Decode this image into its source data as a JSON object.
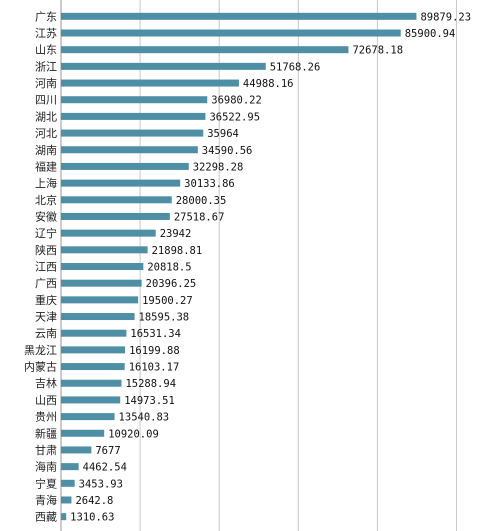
{
  "chart_data": {
    "type": "bar",
    "orientation": "horizontal",
    "categories": [
      "广东",
      "江苏",
      "山东",
      "浙江",
      "河南",
      "四川",
      "湖北",
      "河北",
      "湖南",
      "福建",
      "上海",
      "北京",
      "安徽",
      "辽宁",
      "陕西",
      "江西",
      "广西",
      "重庆",
      "天津",
      "云南",
      "黑龙江",
      "内蒙古",
      "吉林",
      "山西",
      "贵州",
      "新疆",
      "甘肃",
      "海南",
      "宁夏",
      "青海",
      "西藏"
    ],
    "values": [
      89879.23,
      85900.94,
      72678.18,
      51768.26,
      44988.16,
      36980.22,
      36522.95,
      35964,
      34590.56,
      32298.28,
      30133.86,
      28000.35,
      27518.67,
      23942,
      21898.81,
      20818.5,
      20396.25,
      19500.27,
      18595.38,
      16531.34,
      16199.88,
      16103.17,
      15288.94,
      14973.51,
      13540.83,
      10920.09,
      7677,
      4462.54,
      3453.93,
      2642.8,
      1310.63
    ],
    "value_labels": [
      "89879.23",
      "85900.94",
      "72678.18",
      "51768.26",
      "44988.16",
      "36980.22",
      "36522.95",
      "35964",
      "34590.56",
      "32298.28",
      "30133.86",
      "28000.35",
      "27518.67",
      "23942",
      "21898.81",
      "20818.5",
      "20396.25",
      "19500.27",
      "18595.38",
      "16531.34",
      "16199.88",
      "16103.17",
      "15288.94",
      "14973.51",
      "13540.83",
      "10920.09",
      "7677",
      "4462.54",
      "3453.93",
      "2642.8",
      "1310.63"
    ],
    "title": "",
    "xlabel": "",
    "ylabel": "",
    "xlim": [
      0,
      100000
    ],
    "grid_step": 20000,
    "grid": true,
    "bar_color": "#4f8fa6",
    "grid_color": "#c8c8c8"
  }
}
